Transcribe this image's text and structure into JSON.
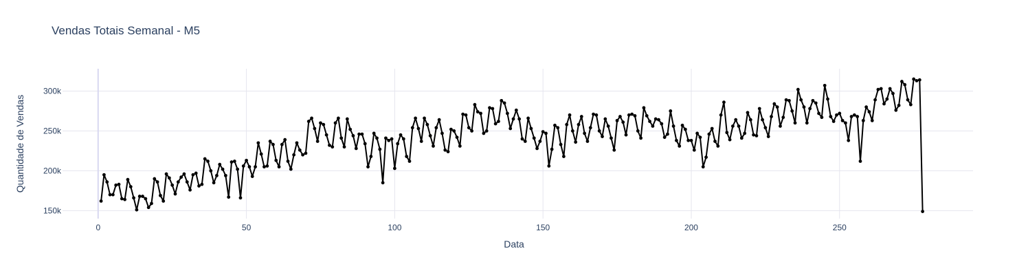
{
  "chart_data": {
    "type": "line",
    "title": "Vendas Totais Semanal - M5",
    "xlabel": "Data",
    "ylabel": "Quantidade de Vendas",
    "xlim": [
      -12,
      295
    ],
    "ylim": [
      140000,
      328000
    ],
    "x_ticks": [
      0,
      50,
      100,
      150,
      200,
      250
    ],
    "x_tick_labels": [
      "0",
      "50",
      "100",
      "150",
      "200",
      "250"
    ],
    "y_ticks": [
      150000,
      200000,
      250000,
      300000
    ],
    "y_tick_labels": [
      "150k",
      "200k",
      "250k",
      "300k"
    ],
    "grid": true,
    "legend": "none",
    "series": [
      {
        "color": "#000000",
        "x_start": 1,
        "values": [
          162000,
          195000,
          186000,
          170000,
          170000,
          182000,
          183000,
          165000,
          164000,
          189000,
          180000,
          166000,
          151000,
          168000,
          168000,
          165000,
          154000,
          159000,
          190000,
          186000,
          169000,
          162000,
          196000,
          191000,
          182000,
          171000,
          186000,
          192000,
          196000,
          186000,
          176000,
          195000,
          197000,
          181000,
          183000,
          215000,
          212000,
          200000,
          185000,
          194000,
          208000,
          202000,
          194000,
          167000,
          211000,
          212000,
          202000,
          166000,
          206000,
          213000,
          205000,
          193000,
          205000,
          235000,
          221000,
          205000,
          206000,
          237000,
          233000,
          213000,
          205000,
          233000,
          239000,
          212000,
          202000,
          220000,
          235000,
          226000,
          220000,
          222000,
          262000,
          266000,
          253000,
          237000,
          260000,
          258000,
          245000,
          232000,
          230000,
          260000,
          266000,
          241000,
          230000,
          265000,
          252000,
          244000,
          228000,
          246000,
          246000,
          234000,
          205000,
          218000,
          247000,
          241000,
          227000,
          185000,
          241000,
          238000,
          240000,
          203000,
          234000,
          245000,
          240000,
          218000,
          212000,
          254000,
          266000,
          253000,
          237000,
          266000,
          258000,
          244000,
          231000,
          254000,
          264000,
          247000,
          226000,
          224000,
          252000,
          250000,
          242000,
          231000,
          271000,
          270000,
          254000,
          250000,
          283000,
          274000,
          272000,
          247000,
          250000,
          279000,
          278000,
          259000,
          262000,
          288000,
          285000,
          272000,
          253000,
          265000,
          276000,
          265000,
          240000,
          237000,
          266000,
          253000,
          241000,
          228000,
          237000,
          249000,
          247000,
          206000,
          227000,
          257000,
          254000,
          233000,
          218000,
          258000,
          270000,
          250000,
          236000,
          258000,
          268000,
          247000,
          237000,
          254000,
          271000,
          270000,
          250000,
          243000,
          265000,
          256000,
          241000,
          226000,
          263000,
          268000,
          261000,
          245000,
          270000,
          271000,
          269000,
          250000,
          241000,
          279000,
          269000,
          262000,
          256000,
          265000,
          264000,
          259000,
          242000,
          246000,
          275000,
          256000,
          238000,
          231000,
          257000,
          252000,
          238000,
          238000,
          226000,
          247000,
          242000,
          205000,
          217000,
          246000,
          253000,
          237000,
          231000,
          270000,
          286000,
          248000,
          239000,
          256000,
          264000,
          256000,
          241000,
          247000,
          273000,
          264000,
          245000,
          244000,
          278000,
          264000,
          254000,
          243000,
          268000,
          284000,
          280000,
          256000,
          267000,
          289000,
          288000,
          275000,
          260000,
          302000,
          289000,
          280000,
          260000,
          278000,
          288000,
          285000,
          272000,
          267000,
          307000,
          290000,
          268000,
          262000,
          270000,
          272000,
          263000,
          260000,
          238000,
          268000,
          270000,
          268000,
          212000,
          263000,
          280000,
          274000,
          263000,
          289000,
          302000,
          303000,
          284000,
          290000,
          303000,
          297000,
          276000,
          282000,
          312000,
          308000,
          289000,
          283000,
          315000,
          313000,
          314000,
          149000
        ]
      }
    ]
  }
}
